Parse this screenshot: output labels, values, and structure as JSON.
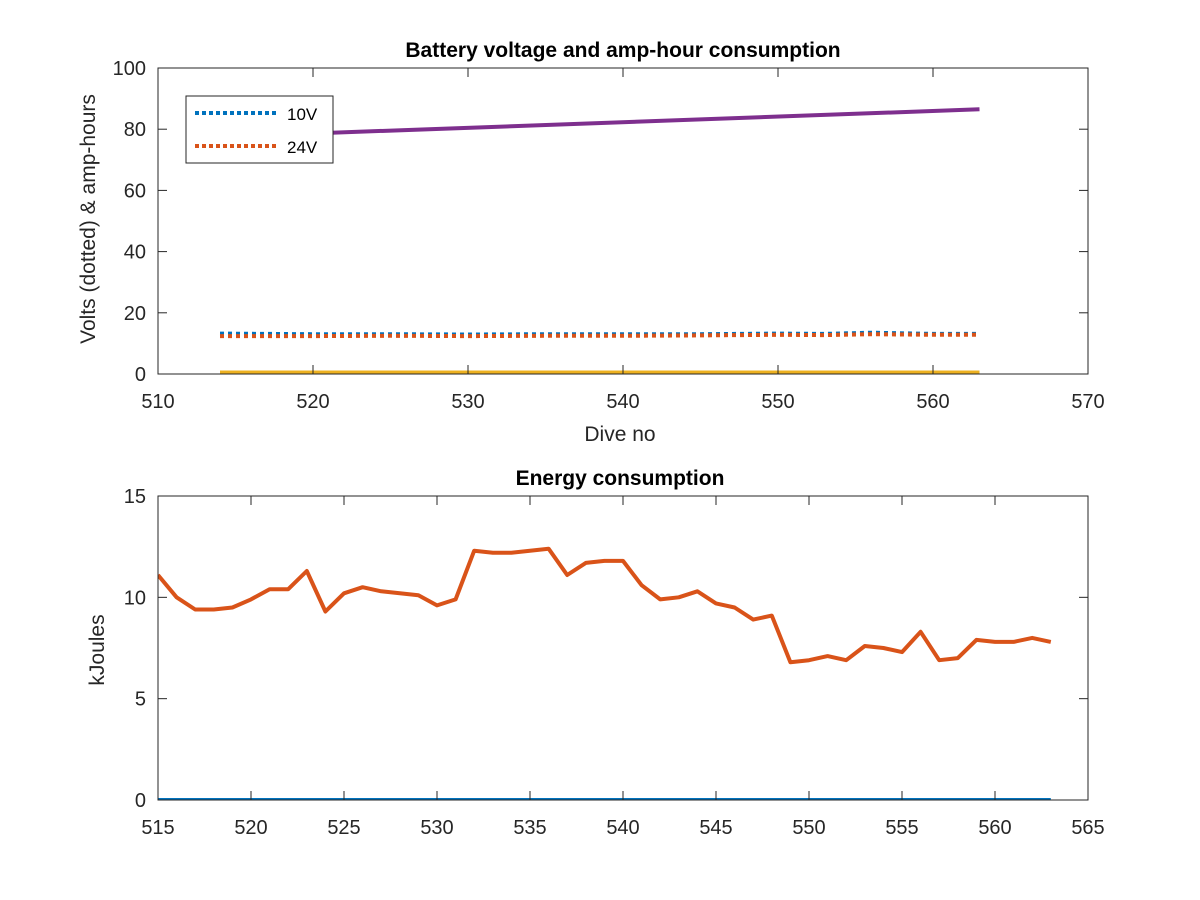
{
  "chart_data": [
    {
      "type": "line",
      "title": "Battery voltage and amp-hour consumption",
      "xlabel": "Dive no",
      "ylabel": "Volts (dotted) & amp-hours",
      "xlim": [
        510,
        570
      ],
      "ylim": [
        0,
        100
      ],
      "xticks": [
        510,
        520,
        530,
        540,
        550,
        560,
        570
      ],
      "yticks": [
        0,
        20,
        40,
        60,
        80,
        100
      ],
      "grid": false,
      "legend": {
        "placement": "top-left",
        "entries": [
          "10V",
          "24V"
        ]
      },
      "series": [
        {
          "name": "10V",
          "color": "#0072BD",
          "style": "dotted",
          "x": [
            514,
            520,
            525,
            530,
            535,
            540,
            545,
            550,
            553,
            556,
            560,
            563
          ],
          "y": [
            13.2,
            13.0,
            13.0,
            12.9,
            13.0,
            13.0,
            13.0,
            13.2,
            13.1,
            13.5,
            13.1,
            13.1
          ]
        },
        {
          "name": "24V",
          "color": "#D95319",
          "style": "dotted",
          "x": [
            514,
            520,
            525,
            530,
            535,
            540,
            545,
            550,
            553,
            556,
            560,
            563
          ],
          "y": [
            12.4,
            12.4,
            12.5,
            12.4,
            12.5,
            12.5,
            12.6,
            12.8,
            12.7,
            13.0,
            12.8,
            12.8
          ]
        },
        {
          "color": "#7E2F8E",
          "style": "solid",
          "x": [
            514,
            563
          ],
          "y": [
            77.5,
            86.5
          ]
        },
        {
          "color": "#EDB120",
          "style": "solid",
          "x": [
            514,
            563
          ],
          "y": [
            0,
            0
          ]
        }
      ]
    },
    {
      "type": "line",
      "title": "Energy consumption",
      "xlabel": "",
      "ylabel": "kJoules",
      "xlim": [
        515,
        565
      ],
      "ylim": [
        0,
        15
      ],
      "xticks": [
        515,
        520,
        525,
        530,
        535,
        540,
        545,
        550,
        555,
        560,
        565
      ],
      "yticks": [
        0,
        5,
        10,
        15
      ],
      "grid": false,
      "series": [
        {
          "color": "#D95319",
          "style": "solid",
          "x": [
            515,
            516,
            517,
            518,
            519,
            520,
            521,
            522,
            523,
            524,
            525,
            526,
            527,
            528,
            529,
            530,
            531,
            532,
            533,
            534,
            535,
            536,
            537,
            538,
            539,
            540,
            541,
            542,
            543,
            544,
            545,
            546,
            547,
            548,
            549,
            550,
            551,
            552,
            553,
            554,
            555,
            556,
            557,
            558,
            559,
            560,
            561,
            562,
            563
          ],
          "y": [
            11.1,
            10.0,
            9.4,
            9.4,
            9.5,
            9.9,
            10.4,
            10.4,
            11.3,
            9.3,
            10.2,
            10.5,
            10.3,
            10.2,
            10.1,
            9.6,
            9.9,
            12.3,
            12.2,
            12.2,
            12.3,
            12.4,
            11.1,
            11.7,
            11.8,
            11.8,
            10.6,
            9.9,
            10.0,
            10.3,
            9.7,
            9.5,
            8.9,
            9.1,
            6.8,
            6.9,
            7.1,
            6.9,
            7.6,
            7.5,
            7.3,
            8.3,
            6.9,
            7.0,
            7.9,
            7.8,
            7.8,
            8.0,
            7.8
          ]
        },
        {
          "color": "#0072BD",
          "style": "solid",
          "x": [
            515,
            563
          ],
          "y": [
            0,
            0
          ]
        }
      ]
    }
  ]
}
